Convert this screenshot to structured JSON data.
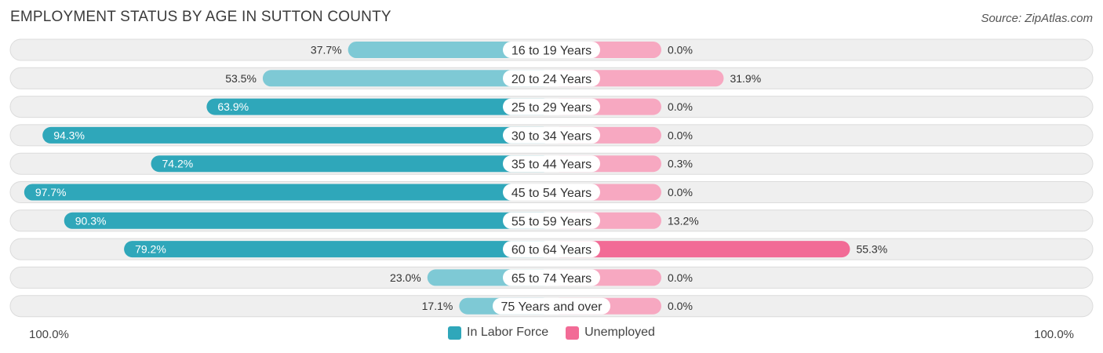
{
  "header": {
    "title": "EMPLOYMENT STATUS BY AGE IN SUTTON COUNTY",
    "source": "Source: ZipAtlas.com"
  },
  "axis": {
    "left_label": "100.0%",
    "right_label": "100.0%"
  },
  "legend": {
    "labor_label": "In Labor Force",
    "unemployed_label": "Unemployed"
  },
  "colors": {
    "labor_dark": "#2fa7ba",
    "labor_light": "#7ec9d5",
    "unemployed_dark": "#f26b96",
    "unemployed_light": "#f7a8c1",
    "row_bg": "#efefef",
    "row_border": "#dcdcdc"
  },
  "chart_data": {
    "type": "bar",
    "orientation": "horizontal-diverging",
    "categories": [
      "16 to 19 Years",
      "20 to 24 Years",
      "25 to 29 Years",
      "30 to 34 Years",
      "35 to 44 Years",
      "45 to 54 Years",
      "55 to 59 Years",
      "60 to 64 Years",
      "65 to 74 Years",
      "75 Years and over"
    ],
    "series": [
      {
        "name": "In Labor Force",
        "values": [
          37.7,
          53.5,
          63.9,
          94.3,
          74.2,
          97.7,
          90.3,
          79.2,
          23.0,
          17.1
        ],
        "labels": [
          "37.7%",
          "53.5%",
          "63.9%",
          "94.3%",
          "74.2%",
          "97.7%",
          "90.3%",
          "79.2%",
          "23.0%",
          "17.1%"
        ]
      },
      {
        "name": "Unemployed",
        "values": [
          0.0,
          31.9,
          0.0,
          0.0,
          0.3,
          0.0,
          13.2,
          55.3,
          0.0,
          0.0
        ],
        "labels": [
          "0.0%",
          "31.9%",
          "0.0%",
          "0.0%",
          "0.3%",
          "0.0%",
          "13.2%",
          "55.3%",
          "0.0%",
          "0.0%"
        ]
      }
    ],
    "xlim": [
      0,
      100
    ],
    "legend_position": "bottom-center"
  }
}
